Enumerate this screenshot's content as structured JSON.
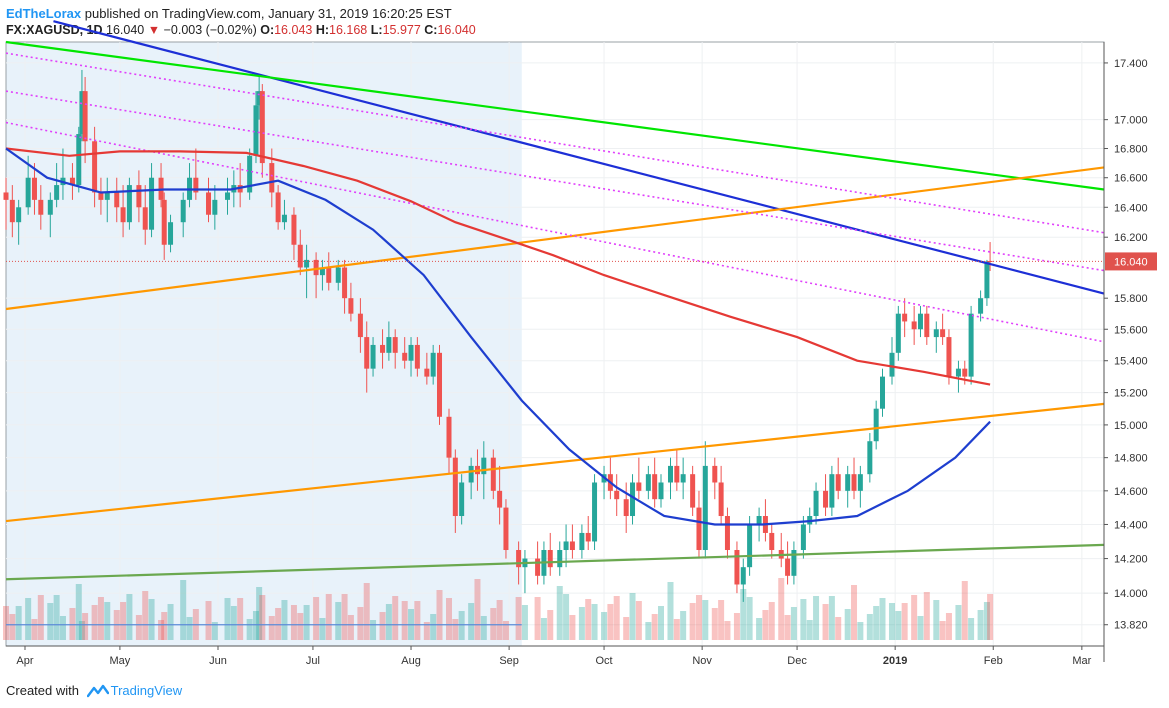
{
  "header": {
    "author": "EdTheLorax",
    "published_text": "published on TradingView.com, January 31, 2019 16:20:25 EST",
    "symbol": "FX:XAGUSD, 1D",
    "price": "16.040",
    "change": "−0.003 (−0.02%)",
    "o_label": "O:",
    "o_value": "16.043",
    "h_label": "H:",
    "h_value": "16.168",
    "l_label": "L:",
    "l_value": "15.977",
    "c_label": "C:",
    "c_value": "16.040"
  },
  "footer": {
    "created_with": "Created with",
    "brand": "TradingView"
  },
  "colors": {
    "up": "#26a69a",
    "down": "#ef5350",
    "sma200": "#e53935",
    "sma50": "#1e3ecf",
    "trend_blue": "#1d2fd6",
    "trend_green": "#00e600",
    "channel_orange": "#ff9800",
    "support_green": "#6aa84f",
    "magenta_dotted": "#e040fb",
    "price_label_bg": "#e0524d",
    "highlight_bg": "#e8f2fa"
  },
  "chart_data": {
    "type": "candlestick",
    "y_scale": "log",
    "ylim": [
      13.7,
      17.55
    ],
    "y_ticks": [
      "17.400",
      "17.000",
      "16.800",
      "16.600",
      "16.400",
      "16.200",
      "16.040",
      "15.800",
      "15.600",
      "15.400",
      "15.200",
      "15.000",
      "14.800",
      "14.600",
      "14.400",
      "14.200",
      "14.000",
      "13.820"
    ],
    "x_ticks": [
      "Apr",
      "May",
      "Jun",
      "Jul",
      "Aug",
      "Sep",
      "Oct",
      "Nov",
      "Dec",
      "2019",
      "Feb",
      "Mar"
    ],
    "x_range": [
      "2018-03-26",
      "2019-03-08"
    ],
    "last_price": "16.040",
    "highlight_range": [
      "2018-03-26",
      "2018-09-05"
    ],
    "volume_hline": 13.82,
    "candles": [
      [
        "2018-03-26",
        16.5,
        16.6,
        16.25,
        16.45
      ],
      [
        "2018-03-28",
        16.45,
        16.55,
        16.2,
        16.3
      ],
      [
        "2018-03-30",
        16.3,
        16.45,
        16.15,
        16.4
      ],
      [
        "2018-04-02",
        16.4,
        16.75,
        16.35,
        16.6
      ],
      [
        "2018-04-04",
        16.6,
        16.7,
        16.35,
        16.45
      ],
      [
        "2018-04-06",
        16.45,
        16.55,
        16.25,
        16.35
      ],
      [
        "2018-04-09",
        16.35,
        16.5,
        16.2,
        16.45
      ],
      [
        "2018-04-11",
        16.45,
        16.7,
        16.4,
        16.55
      ],
      [
        "2018-04-13",
        16.55,
        16.8,
        16.45,
        16.6
      ],
      [
        "2018-04-16",
        16.6,
        16.7,
        16.45,
        16.55
      ],
      [
        "2018-04-18",
        16.55,
        16.95,
        16.5,
        16.9
      ],
      [
        "2018-04-19",
        16.9,
        17.35,
        16.85,
        17.2
      ],
      [
        "2018-04-20",
        17.2,
        17.3,
        16.7,
        16.85
      ],
      [
        "2018-04-23",
        16.85,
        16.95,
        16.4,
        16.5
      ],
      [
        "2018-04-25",
        16.5,
        16.6,
        16.35,
        16.45
      ],
      [
        "2018-04-27",
        16.45,
        16.6,
        16.3,
        16.5
      ],
      [
        "2018-04-30",
        16.5,
        16.6,
        16.3,
        16.4
      ],
      [
        "2018-05-02",
        16.4,
        16.55,
        16.2,
        16.3
      ],
      [
        "2018-05-04",
        16.3,
        16.6,
        16.25,
        16.55
      ],
      [
        "2018-05-07",
        16.55,
        16.65,
        16.3,
        16.4
      ],
      [
        "2018-05-09",
        16.4,
        16.55,
        16.15,
        16.25
      ],
      [
        "2018-05-11",
        16.25,
        16.7,
        16.2,
        16.6
      ],
      [
        "2018-05-14",
        16.6,
        16.7,
        16.4,
        16.45
      ],
      [
        "2018-05-15",
        16.45,
        16.5,
        16.05,
        16.15
      ],
      [
        "2018-05-17",
        16.15,
        16.35,
        16.1,
        16.3
      ],
      [
        "2018-05-21",
        16.3,
        16.5,
        16.2,
        16.45
      ],
      [
        "2018-05-23",
        16.45,
        16.7,
        16.4,
        16.6
      ],
      [
        "2018-05-25",
        16.6,
        16.8,
        16.45,
        16.5
      ],
      [
        "2018-05-29",
        16.5,
        16.6,
        16.3,
        16.35
      ],
      [
        "2018-05-31",
        16.35,
        16.55,
        16.25,
        16.45
      ],
      [
        "2018-06-04",
        16.45,
        16.6,
        16.35,
        16.5
      ],
      [
        "2018-06-06",
        16.5,
        16.65,
        16.4,
        16.55
      ],
      [
        "2018-06-08",
        16.55,
        16.7,
        16.4,
        16.5
      ],
      [
        "2018-06-11",
        16.5,
        16.8,
        16.45,
        16.75
      ],
      [
        "2018-06-13",
        16.75,
        17.2,
        16.7,
        17.1
      ],
      [
        "2018-06-14",
        17.1,
        17.3,
        17.0,
        17.2
      ],
      [
        "2018-06-15",
        17.2,
        17.25,
        16.6,
        16.7
      ],
      [
        "2018-06-18",
        16.7,
        16.8,
        16.4,
        16.5
      ],
      [
        "2018-06-20",
        16.5,
        16.55,
        16.25,
        16.3
      ],
      [
        "2018-06-22",
        16.3,
        16.45,
        16.25,
        16.35
      ],
      [
        "2018-06-25",
        16.35,
        16.4,
        16.05,
        16.15
      ],
      [
        "2018-06-27",
        16.15,
        16.25,
        15.95,
        16.0
      ],
      [
        "2018-06-29",
        16.0,
        16.15,
        15.8,
        16.05
      ],
      [
        "2018-07-02",
        16.05,
        16.1,
        15.8,
        15.95
      ],
      [
        "2018-07-04",
        15.95,
        16.05,
        15.85,
        16.0
      ],
      [
        "2018-07-06",
        16.0,
        16.1,
        15.85,
        15.9
      ],
      [
        "2018-07-09",
        15.9,
        16.05,
        15.85,
        16.0
      ],
      [
        "2018-07-11",
        16.0,
        16.05,
        15.7,
        15.8
      ],
      [
        "2018-07-13",
        15.8,
        15.9,
        15.65,
        15.7
      ],
      [
        "2018-07-16",
        15.7,
        15.8,
        15.45,
        15.55
      ],
      [
        "2018-07-18",
        15.55,
        15.65,
        15.2,
        15.35
      ],
      [
        "2018-07-20",
        15.35,
        15.55,
        15.3,
        15.5
      ],
      [
        "2018-07-23",
        15.5,
        15.6,
        15.35,
        15.45
      ],
      [
        "2018-07-25",
        15.45,
        15.65,
        15.4,
        15.55
      ],
      [
        "2018-07-27",
        15.55,
        15.6,
        15.35,
        15.45
      ],
      [
        "2018-07-30",
        15.45,
        15.55,
        15.35,
        15.4
      ],
      [
        "2018-08-01",
        15.4,
        15.55,
        15.3,
        15.5
      ],
      [
        "2018-08-03",
        15.5,
        15.55,
        15.3,
        15.35
      ],
      [
        "2018-08-06",
        15.35,
        15.45,
        15.25,
        15.3
      ],
      [
        "2018-08-08",
        15.3,
        15.5,
        15.25,
        15.45
      ],
      [
        "2018-08-10",
        15.45,
        15.5,
        15.0,
        15.05
      ],
      [
        "2018-08-13",
        15.05,
        15.1,
        14.7,
        14.8
      ],
      [
        "2018-08-15",
        14.8,
        14.85,
        14.35,
        14.45
      ],
      [
        "2018-08-17",
        14.45,
        14.7,
        14.4,
        14.65
      ],
      [
        "2018-08-20",
        14.65,
        14.8,
        14.55,
        14.75
      ],
      [
        "2018-08-22",
        14.75,
        14.85,
        14.6,
        14.7
      ],
      [
        "2018-08-24",
        14.7,
        14.9,
        14.55,
        14.8
      ],
      [
        "2018-08-27",
        14.8,
        14.85,
        14.55,
        14.6
      ],
      [
        "2018-08-29",
        14.6,
        14.75,
        14.4,
        14.5
      ],
      [
        "2018-08-31",
        14.5,
        14.55,
        14.2,
        14.25
      ],
      [
        "2018-09-04",
        14.25,
        14.3,
        14.05,
        14.15
      ],
      [
        "2018-09-06",
        14.15,
        14.25,
        14.0,
        14.2
      ],
      [
        "2018-09-10",
        14.2,
        14.3,
        14.05,
        14.1
      ],
      [
        "2018-09-12",
        14.1,
        14.3,
        14.05,
        14.25
      ],
      [
        "2018-09-14",
        14.25,
        14.35,
        14.1,
        14.15
      ],
      [
        "2018-09-17",
        14.15,
        14.3,
        14.1,
        14.25
      ],
      [
        "2018-09-19",
        14.25,
        14.4,
        14.15,
        14.3
      ],
      [
        "2018-09-21",
        14.3,
        14.4,
        14.2,
        14.25
      ],
      [
        "2018-09-24",
        14.25,
        14.4,
        14.2,
        14.35
      ],
      [
        "2018-09-26",
        14.35,
        14.45,
        14.25,
        14.3
      ],
      [
        "2018-09-28",
        14.3,
        14.7,
        14.25,
        14.65
      ],
      [
        "2018-10-01",
        14.65,
        14.75,
        14.55,
        14.7
      ],
      [
        "2018-10-03",
        14.7,
        14.8,
        14.55,
        14.6
      ],
      [
        "2018-10-05",
        14.6,
        14.7,
        14.45,
        14.55
      ],
      [
        "2018-10-08",
        14.55,
        14.65,
        14.35,
        14.45
      ],
      [
        "2018-10-10",
        14.45,
        14.7,
        14.4,
        14.65
      ],
      [
        "2018-10-12",
        14.65,
        14.8,
        14.55,
        14.6
      ],
      [
        "2018-10-15",
        14.6,
        14.75,
        14.55,
        14.7
      ],
      [
        "2018-10-17",
        14.7,
        14.8,
        14.5,
        14.55
      ],
      [
        "2018-10-19",
        14.55,
        14.7,
        14.5,
        14.65
      ],
      [
        "2018-10-22",
        14.65,
        14.8,
        14.55,
        14.75
      ],
      [
        "2018-10-24",
        14.75,
        14.85,
        14.6,
        14.65
      ],
      [
        "2018-10-26",
        14.65,
        14.8,
        14.55,
        14.7
      ],
      [
        "2018-10-29",
        14.7,
        14.75,
        14.45,
        14.5
      ],
      [
        "2018-10-31",
        14.5,
        14.6,
        14.2,
        14.25
      ],
      [
        "2018-11-02",
        14.25,
        14.9,
        14.2,
        14.75
      ],
      [
        "2018-11-05",
        14.75,
        14.8,
        14.55,
        14.65
      ],
      [
        "2018-11-07",
        14.65,
        14.75,
        14.4,
        14.45
      ],
      [
        "2018-11-09",
        14.45,
        14.5,
        14.2,
        14.25
      ],
      [
        "2018-11-12",
        14.25,
        14.3,
        14.0,
        14.05
      ],
      [
        "2018-11-14",
        14.05,
        14.2,
        13.95,
        14.15
      ],
      [
        "2018-11-16",
        14.15,
        14.45,
        14.1,
        14.4
      ],
      [
        "2018-11-19",
        14.4,
        14.5,
        14.3,
        14.45
      ],
      [
        "2018-11-21",
        14.45,
        14.55,
        14.3,
        14.35
      ],
      [
        "2018-11-23",
        14.35,
        14.4,
        14.2,
        14.25
      ],
      [
        "2018-11-26",
        14.25,
        14.35,
        14.15,
        14.2
      ],
      [
        "2018-11-28",
        14.2,
        14.3,
        14.05,
        14.1
      ],
      [
        "2018-11-30",
        14.1,
        14.3,
        14.05,
        14.25
      ],
      [
        "2018-12-03",
        14.25,
        14.45,
        14.2,
        14.4
      ],
      [
        "2018-12-05",
        14.4,
        14.5,
        14.35,
        14.45
      ],
      [
        "2018-12-07",
        14.45,
        14.65,
        14.4,
        14.6
      ],
      [
        "2018-12-10",
        14.6,
        14.7,
        14.45,
        14.5
      ],
      [
        "2018-12-12",
        14.5,
        14.75,
        14.45,
        14.7
      ],
      [
        "2018-12-14",
        14.7,
        14.8,
        14.55,
        14.6
      ],
      [
        "2018-12-17",
        14.6,
        14.75,
        14.5,
        14.7
      ],
      [
        "2018-12-19",
        14.7,
        14.8,
        14.55,
        14.6
      ],
      [
        "2018-12-21",
        14.6,
        14.75,
        14.5,
        14.7
      ],
      [
        "2018-12-24",
        14.7,
        14.95,
        14.65,
        14.9
      ],
      [
        "2018-12-26",
        14.9,
        15.15,
        14.85,
        15.1
      ],
      [
        "2018-12-28",
        15.1,
        15.35,
        15.05,
        15.3
      ],
      [
        "2018-12-31",
        15.3,
        15.55,
        15.25,
        15.45
      ],
      [
        "2019-01-02",
        15.45,
        15.75,
        15.4,
        15.7
      ],
      [
        "2019-01-04",
        15.7,
        15.8,
        15.55,
        15.65
      ],
      [
        "2019-01-07",
        15.65,
        15.75,
        15.5,
        15.6
      ],
      [
        "2019-01-09",
        15.6,
        15.75,
        15.55,
        15.7
      ],
      [
        "2019-01-11",
        15.7,
        15.75,
        15.5,
        15.55
      ],
      [
        "2019-01-14",
        15.55,
        15.65,
        15.45,
        15.6
      ],
      [
        "2019-01-16",
        15.6,
        15.7,
        15.5,
        15.55
      ],
      [
        "2019-01-18",
        15.55,
        15.6,
        15.25,
        15.3
      ],
      [
        "2019-01-21",
        15.3,
        15.4,
        15.2,
        15.35
      ],
      [
        "2019-01-23",
        15.35,
        15.4,
        15.25,
        15.3
      ],
      [
        "2019-01-25",
        15.3,
        15.75,
        15.25,
        15.7
      ],
      [
        "2019-01-28",
        15.7,
        15.85,
        15.65,
        15.8
      ],
      [
        "2019-01-30",
        15.8,
        16.05,
        15.75,
        16.04
      ],
      [
        "2019-01-31",
        16.043,
        16.168,
        15.977,
        16.04
      ]
    ],
    "sma200": [
      [
        "2018-03-26",
        16.8
      ],
      [
        "2018-04-15",
        16.75
      ],
      [
        "2018-05-01",
        16.78
      ],
      [
        "2018-05-20",
        16.78
      ],
      [
        "2018-06-10",
        16.77
      ],
      [
        "2018-06-28",
        16.68
      ],
      [
        "2018-07-15",
        16.58
      ],
      [
        "2018-08-01",
        16.44
      ],
      [
        "2018-08-15",
        16.3
      ],
      [
        "2018-09-01",
        16.18
      ],
      [
        "2018-09-15",
        16.08
      ],
      [
        "2018-10-01",
        15.95
      ],
      [
        "2018-10-20",
        15.82
      ],
      [
        "2018-11-10",
        15.68
      ],
      [
        "2018-12-01",
        15.55
      ],
      [
        "2018-12-20",
        15.4
      ],
      [
        "2019-01-10",
        15.33
      ],
      [
        "2019-01-31",
        15.25
      ]
    ],
    "sma50": [
      [
        "2018-03-26",
        16.8
      ],
      [
        "2018-04-08",
        16.6
      ],
      [
        "2018-04-25",
        16.5
      ],
      [
        "2018-05-15",
        16.52
      ],
      [
        "2018-06-05",
        16.52
      ],
      [
        "2018-06-20",
        16.58
      ],
      [
        "2018-07-05",
        16.45
      ],
      [
        "2018-07-20",
        16.25
      ],
      [
        "2018-08-05",
        15.95
      ],
      [
        "2018-08-20",
        15.55
      ],
      [
        "2018-09-05",
        15.15
      ],
      [
        "2018-09-20",
        14.85
      ],
      [
        "2018-10-05",
        14.62
      ],
      [
        "2018-10-20",
        14.45
      ],
      [
        "2018-11-05",
        14.4
      ],
      [
        "2018-11-20",
        14.4
      ],
      [
        "2018-12-05",
        14.42
      ],
      [
        "2018-12-20",
        14.45
      ],
      [
        "2019-01-05",
        14.6
      ],
      [
        "2019-01-20",
        14.8
      ],
      [
        "2019-01-31",
        15.02
      ]
    ],
    "lines": [
      {
        "name": "blue-trendline",
        "color": "#1d2fd6",
        "dash": "",
        "points": [
          [
            "2018-04-10",
            17.7
          ],
          [
            "2019-03-08",
            15.83
          ]
        ]
      },
      {
        "name": "green-trendline",
        "color": "#00e600",
        "dash": "",
        "points": [
          [
            "2018-03-26",
            17.55
          ],
          [
            "2019-03-08",
            16.52
          ]
        ]
      },
      {
        "name": "upper-orange-channel",
        "color": "#ff9800",
        "dash": "",
        "points": [
          [
            "2018-03-26",
            15.73
          ],
          [
            "2019-03-08",
            16.67
          ]
        ]
      },
      {
        "name": "lower-orange-channel",
        "color": "#ff9800",
        "dash": "",
        "points": [
          [
            "2018-03-26",
            14.42
          ],
          [
            "2019-03-08",
            15.13
          ]
        ]
      },
      {
        "name": "support-green-line",
        "color": "#6aa84f",
        "dash": "",
        "points": [
          [
            "2018-03-26",
            14.08
          ],
          [
            "2019-03-08",
            14.28
          ]
        ]
      },
      {
        "name": "magenta-top",
        "color": "#e040fb",
        "dash": "2,3",
        "points": [
          [
            "2018-03-26",
            17.47
          ],
          [
            "2019-03-08",
            16.23
          ]
        ]
      },
      {
        "name": "magenta-mid",
        "color": "#e040fb",
        "dash": "2,3",
        "points": [
          [
            "2018-03-26",
            17.2
          ],
          [
            "2019-03-08",
            15.98
          ]
        ]
      },
      {
        "name": "magenta-low",
        "color": "#e040fb",
        "dash": "2,3",
        "points": [
          [
            "2018-03-26",
            16.98
          ],
          [
            "2019-03-08",
            15.52
          ]
        ]
      }
    ]
  }
}
